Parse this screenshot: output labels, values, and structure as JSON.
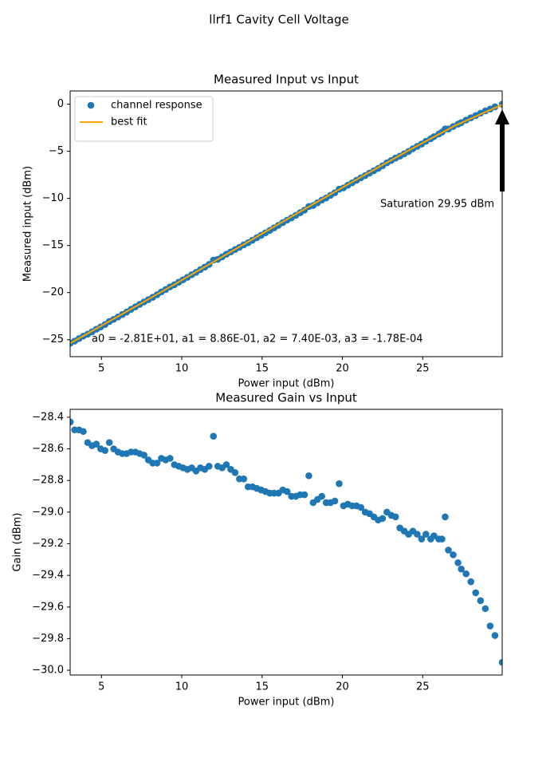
{
  "title": "llrf1 Cavity Cell Voltage",
  "chart_data": [
    {
      "type": "scatter",
      "title": "Measured Input vs Input",
      "xlabel": "Power input (dBm)",
      "ylabel": "Measured input (dBm)",
      "xlim": [
        3.05,
        29.95
      ],
      "ylim": [
        -26.8,
        1.4
      ],
      "xticks": [
        5,
        10,
        15,
        20,
        25
      ],
      "yticks": [
        {
          "value": -25,
          "label": "−25"
        },
        {
          "value": -20,
          "label": "−20"
        },
        {
          "value": -15,
          "label": "−15"
        },
        {
          "value": -10,
          "label": "−10"
        },
        {
          "value": -5,
          "label": "−5"
        },
        0
      ],
      "legend": "upper left",
      "annotations": [
        "Saturation 29.95 dBm",
        "a0 = -2.81E+01, a1 = 8.86E-01, a2 = 7.40E-03, a3 = -1.78E-04"
      ],
      "x": [
        3.06,
        3.33,
        3.6,
        3.87,
        4.14,
        4.41,
        4.68,
        4.95,
        5.22,
        5.49,
        5.76,
        6.03,
        6.3,
        6.57,
        6.84,
        7.11,
        7.38,
        7.65,
        7.92,
        8.19,
        8.46,
        8.73,
        9.0,
        9.27,
        9.54,
        9.81,
        10.08,
        10.35,
        10.62,
        10.89,
        11.16,
        11.43,
        11.7,
        11.97,
        12.24,
        12.51,
        12.78,
        13.05,
        13.32,
        13.59,
        13.86,
        14.13,
        14.4,
        14.67,
        14.94,
        15.21,
        15.48,
        15.75,
        16.02,
        16.29,
        16.56,
        16.83,
        17.1,
        17.37,
        17.64,
        17.91,
        18.18,
        18.45,
        18.72,
        18.99,
        19.26,
        19.53,
        19.8,
        20.07,
        20.34,
        20.61,
        20.88,
        21.15,
        21.42,
        21.69,
        21.96,
        22.23,
        22.5,
        22.77,
        23.04,
        23.31,
        23.58,
        23.85,
        24.12,
        24.39,
        24.66,
        24.93,
        25.2,
        25.5,
        25.7,
        26.0,
        26.2,
        26.4,
        26.6,
        26.9,
        27.2,
        27.4,
        27.7,
        28.0,
        28.3,
        28.6,
        28.9,
        29.2,
        29.5,
        29.95
      ],
      "series": [
        {
          "name": "channel response",
          "type": "scatter",
          "color": "#1f77b4",
          "values": [
            -25.37,
            -25.15,
            -24.88,
            -24.62,
            -24.42,
            -24.17,
            -23.89,
            -23.65,
            -23.39,
            -23.07,
            -22.84,
            -22.59,
            -22.33,
            -22.06,
            -21.78,
            -21.51,
            -21.25,
            -20.99,
            -20.75,
            -20.5,
            -20.23,
            -19.93,
            -19.67,
            -19.39,
            -19.16,
            -18.9,
            -18.64,
            -18.38,
            -18.1,
            -17.85,
            -17.56,
            -17.3,
            -17.01,
            -16.55,
            -16.47,
            -16.21,
            -15.92,
            -15.68,
            -15.43,
            -15.2,
            -14.93,
            -14.71,
            -14.44,
            -14.18,
            -13.92,
            -13.66,
            -13.4,
            -13.13,
            -12.86,
            -12.57,
            -12.31,
            -12.07,
            -11.8,
            -11.52,
            -11.25,
            -10.86,
            -10.76,
            -10.47,
            -10.18,
            -9.95,
            -9.68,
            -9.4,
            -9.02,
            -8.89,
            -8.61,
            -8.35,
            -8.08,
            -7.82,
            -7.58,
            -7.32,
            -7.07,
            -6.82,
            -6.54,
            -6.23,
            -5.98,
            -5.72,
            -5.52,
            -5.27,
            -5.02,
            -4.73,
            -4.48,
            -4.24,
            -3.94,
            -3.67,
            -3.45,
            -3.17,
            -2.97,
            -2.63,
            -2.64,
            -2.37,
            -2.12,
            -1.96,
            -1.69,
            -1.44,
            -1.21,
            -0.96,
            -0.71,
            -0.52,
            -0.28,
            0.0
          ]
        },
        {
          "name": "best fit",
          "type": "line",
          "color": "#ffa500",
          "x": [
            3.05,
            6,
            9,
            12,
            15,
            18,
            21,
            24,
            27,
            29.95
          ],
          "values": [
            -25.38,
            -22.56,
            -19.66,
            -16.71,
            -13.75,
            -10.79,
            -7.88,
            -5.03,
            -2.29,
            -0.05
          ]
        }
      ]
    },
    {
      "type": "scatter",
      "title": "Measured Gain vs Input",
      "xlabel": "Power input (dBm)",
      "ylabel": "Gain (dBm)",
      "xlim": [
        3.05,
        29.95
      ],
      "ylim": [
        -30.03,
        -28.35
      ],
      "xticks": [
        5,
        10,
        15,
        20,
        25
      ],
      "yticks": [
        {
          "value": -30.0,
          "label": "−30.0"
        },
        {
          "value": -29.8,
          "label": "−29.8"
        },
        {
          "value": -29.6,
          "label": "−29.6"
        },
        {
          "value": -29.4,
          "label": "−29.4"
        },
        {
          "value": -29.2,
          "label": "−29.2"
        },
        {
          "value": -29.0,
          "label": "−29.0"
        },
        {
          "value": -28.8,
          "label": "−28.8"
        },
        {
          "value": -28.6,
          "label": "−28.6"
        },
        {
          "value": -28.4,
          "label": "−28.4"
        }
      ],
      "x": [
        3.06,
        3.33,
        3.6,
        3.87,
        4.14,
        4.41,
        4.68,
        4.95,
        5.22,
        5.49,
        5.76,
        6.03,
        6.3,
        6.57,
        6.84,
        7.11,
        7.38,
        7.65,
        7.92,
        8.19,
        8.46,
        8.73,
        9.0,
        9.27,
        9.54,
        9.81,
        10.08,
        10.35,
        10.62,
        10.89,
        11.16,
        11.43,
        11.7,
        11.97,
        12.24,
        12.51,
        12.78,
        13.05,
        13.32,
        13.59,
        13.86,
        14.13,
        14.4,
        14.67,
        14.94,
        15.21,
        15.48,
        15.75,
        16.02,
        16.29,
        16.56,
        16.83,
        17.1,
        17.37,
        17.64,
        17.91,
        18.18,
        18.45,
        18.72,
        18.99,
        19.26,
        19.53,
        19.8,
        20.07,
        20.34,
        20.61,
        20.88,
        21.15,
        21.42,
        21.69,
        21.96,
        22.23,
        22.5,
        22.77,
        23.04,
        23.31,
        23.58,
        23.85,
        24.12,
        24.39,
        24.66,
        24.93,
        25.2,
        25.5,
        25.7,
        26.0,
        26.2,
        26.4,
        26.6,
        26.9,
        27.2,
        27.4,
        27.7,
        28.0,
        28.3,
        28.6,
        28.9,
        29.2,
        29.5,
        29.95
      ],
      "series": [
        {
          "type": "scatter",
          "color": "#1f77b4",
          "values": [
            -28.43,
            -28.48,
            -28.48,
            -28.49,
            -28.56,
            -28.58,
            -28.57,
            -28.6,
            -28.61,
            -28.56,
            -28.6,
            -28.62,
            -28.63,
            -28.63,
            -28.62,
            -28.62,
            -28.63,
            -28.64,
            -28.67,
            -28.69,
            -28.69,
            -28.66,
            -28.67,
            -28.66,
            -28.7,
            -28.71,
            -28.72,
            -28.73,
            -28.72,
            -28.74,
            -28.72,
            -28.73,
            -28.71,
            -28.52,
            -28.71,
            -28.72,
            -28.7,
            -28.73,
            -28.75,
            -28.79,
            -28.79,
            -28.84,
            -28.84,
            -28.85,
            -28.86,
            -28.87,
            -28.88,
            -28.88,
            -28.88,
            -28.86,
            -28.87,
            -28.9,
            -28.9,
            -28.89,
            -28.89,
            -28.77,
            -28.94,
            -28.92,
            -28.9,
            -28.94,
            -28.94,
            -28.93,
            -28.82,
            -28.96,
            -28.95,
            -28.96,
            -28.96,
            -28.97,
            -29.0,
            -29.01,
            -29.03,
            -29.05,
            -29.04,
            -29.0,
            -29.02,
            -29.03,
            -29.1,
            -29.12,
            -29.14,
            -29.12,
            -29.14,
            -29.17,
            -29.14,
            -29.17,
            -29.15,
            -29.17,
            -29.17,
            -29.03,
            -29.24,
            -29.27,
            -29.32,
            -29.36,
            -29.39,
            -29.44,
            -29.51,
            -29.56,
            -29.61,
            -29.72,
            -29.78,
            -29.95
          ]
        }
      ]
    }
  ]
}
